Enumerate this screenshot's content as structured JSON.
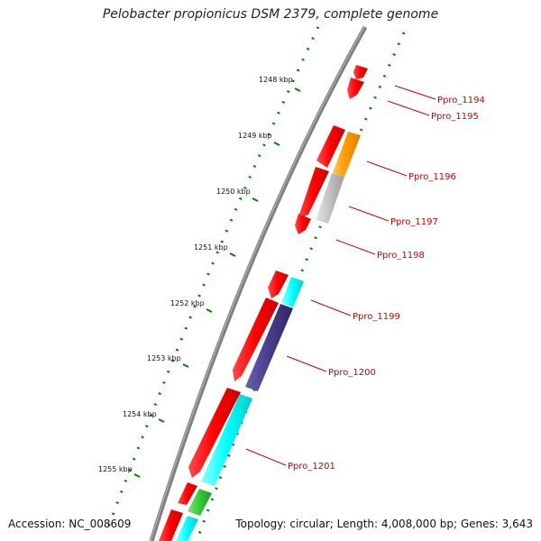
{
  "header": {
    "title": "Pelobacter propionicus DSM 2379, complete genome"
  },
  "footer": {
    "accession": "Accession: NC_008609",
    "info": "Topology: circular; Length: 4,008,000 bp; Genes: 3,643"
  },
  "ruler": {
    "ticks": [
      "1248 kbp",
      "1249 kbp",
      "1250 kbp",
      "1251 kbp",
      "1252 kbp",
      "1253 kbp",
      "1254 kbp",
      "1255 kbp"
    ]
  },
  "colors": {
    "backbone": "#808080",
    "forward_gene": "#ff0000",
    "gc_track": "#008000",
    "label_line": "#cc0000",
    "orange": "#ff9900",
    "gray": "#c0c0c0",
    "cyan": "#00ffff",
    "purple": "#483d8b",
    "green": "#33cc33"
  },
  "genes": {
    "labels": [
      "Ppro_1194",
      "Ppro_1195",
      "Ppro_1196",
      "Ppro_1197",
      "Ppro_1198",
      "Ppro_1199",
      "Ppro_1200",
      "Ppro_1201"
    ]
  }
}
